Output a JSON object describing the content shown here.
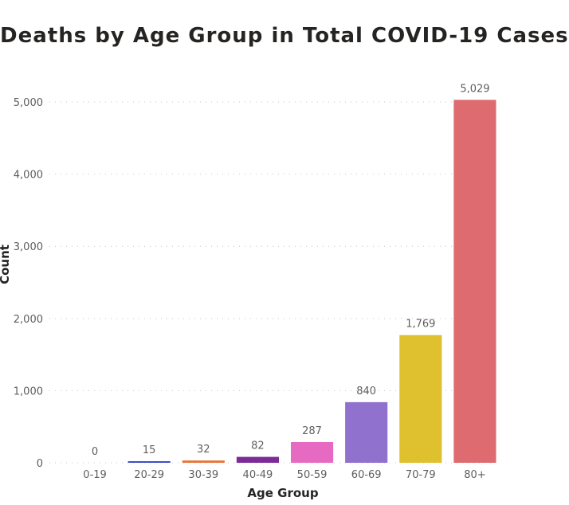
{
  "chart_data": {
    "type": "bar",
    "title": "Deaths by Age Group in Total COVID-19 Cases",
    "xlabel": "Age Group",
    "ylabel": "Count",
    "categories": [
      "0-19",
      "20-29",
      "30-39",
      "40-49",
      "50-59",
      "60-69",
      "70-79",
      "80+"
    ],
    "values": [
      0,
      15,
      32,
      82,
      287,
      840,
      1769,
      5029
    ],
    "value_labels": [
      "0",
      "15",
      "32",
      "82",
      "287",
      "840",
      "1,769",
      "5,029"
    ],
    "colors": [
      "#118DFF",
      "#3C4FC8",
      "#E8743B",
      "#7B2C96",
      "#E66AC1",
      "#9071CE",
      "#DFC02F",
      "#DD6B70"
    ],
    "ylim": [
      0,
      5000
    ],
    "yticks": [
      0,
      1000,
      2000,
      3000,
      4000,
      5000
    ],
    "ytick_labels": [
      "0",
      "1,000",
      "2,000",
      "3,000",
      "4,000",
      "5,000"
    ],
    "grid": true,
    "legend": "none"
  }
}
